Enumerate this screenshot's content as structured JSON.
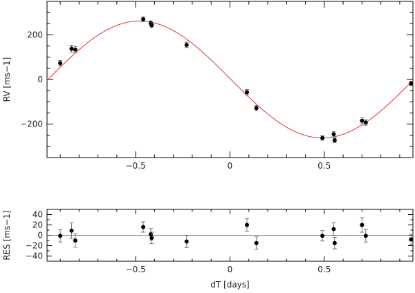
{
  "chart_data": [
    {
      "type": "scatter",
      "panel": "top",
      "title": "",
      "xlabel": "",
      "ylabel": "RV [ms−1]",
      "xlim": [
        -0.97,
        0.97
      ],
      "ylim": [
        -350,
        350
      ],
      "x_ticks": [
        -0.5,
        0,
        0.5
      ],
      "x_tick_labels": [
        "−0.5",
        "0",
        "0.5"
      ],
      "y_ticks": [
        -200,
        0,
        200
      ],
      "y_tick_labels": [
        "−200",
        "0",
        "200"
      ],
      "grid": false,
      "model": {
        "amplitude": 262,
        "phase_peak": -0.48,
        "period": 1.94,
        "color": "#e03030"
      },
      "points": [
        {
          "x": -0.9,
          "y": 73,
          "err": 12
        },
        {
          "x": -0.84,
          "y": 138,
          "err": 15
        },
        {
          "x": -0.82,
          "y": 134,
          "err": 14
        },
        {
          "x": -0.46,
          "y": 270,
          "err": 10
        },
        {
          "x": -0.42,
          "y": 252,
          "err": 11
        },
        {
          "x": -0.415,
          "y": 243,
          "err": 11
        },
        {
          "x": -0.23,
          "y": 155,
          "err": 12
        },
        {
          "x": 0.09,
          "y": -57,
          "err": 12
        },
        {
          "x": 0.14,
          "y": -128,
          "err": 12
        },
        {
          "x": 0.49,
          "y": -262,
          "err": 10
        },
        {
          "x": 0.55,
          "y": -245,
          "err": 12
        },
        {
          "x": 0.555,
          "y": -272,
          "err": 11
        },
        {
          "x": 0.7,
          "y": -185,
          "err": 14
        },
        {
          "x": 0.72,
          "y": -193,
          "err": 12
        },
        {
          "x": 0.96,
          "y": -18,
          "err": 10
        }
      ]
    },
    {
      "type": "scatter",
      "panel": "bottom",
      "title": "",
      "xlabel": "dT [days]",
      "ylabel": "RES [ms−1]",
      "xlim": [
        -0.97,
        0.97
      ],
      "ylim": [
        -50,
        50
      ],
      "x_ticks": [
        -0.5,
        0,
        0.5
      ],
      "x_tick_labels": [
        "−0.5",
        "0",
        "0.5"
      ],
      "y_ticks": [
        -40,
        -20,
        0,
        20,
        40
      ],
      "y_tick_labels": [
        "−40",
        "−20",
        "0",
        "20",
        "40"
      ],
      "grid": false,
      "points": [
        {
          "x": -0.9,
          "y": -1,
          "err": 12
        },
        {
          "x": -0.84,
          "y": 9,
          "err": 15
        },
        {
          "x": -0.82,
          "y": -10,
          "err": 13
        },
        {
          "x": -0.46,
          "y": 16,
          "err": 10
        },
        {
          "x": -0.42,
          "y": 2,
          "err": 11
        },
        {
          "x": -0.415,
          "y": -5,
          "err": 11
        },
        {
          "x": -0.23,
          "y": -12,
          "err": 12
        },
        {
          "x": 0.09,
          "y": 20,
          "err": 12
        },
        {
          "x": 0.14,
          "y": -15,
          "err": 12
        },
        {
          "x": 0.49,
          "y": -1,
          "err": 10
        },
        {
          "x": 0.55,
          "y": 12,
          "err": 12
        },
        {
          "x": 0.555,
          "y": -15,
          "err": 11
        },
        {
          "x": 0.7,
          "y": 20,
          "err": 14
        },
        {
          "x": 0.72,
          "y": -1,
          "err": 12
        },
        {
          "x": 0.96,
          "y": -8,
          "err": 10
        }
      ]
    }
  ]
}
